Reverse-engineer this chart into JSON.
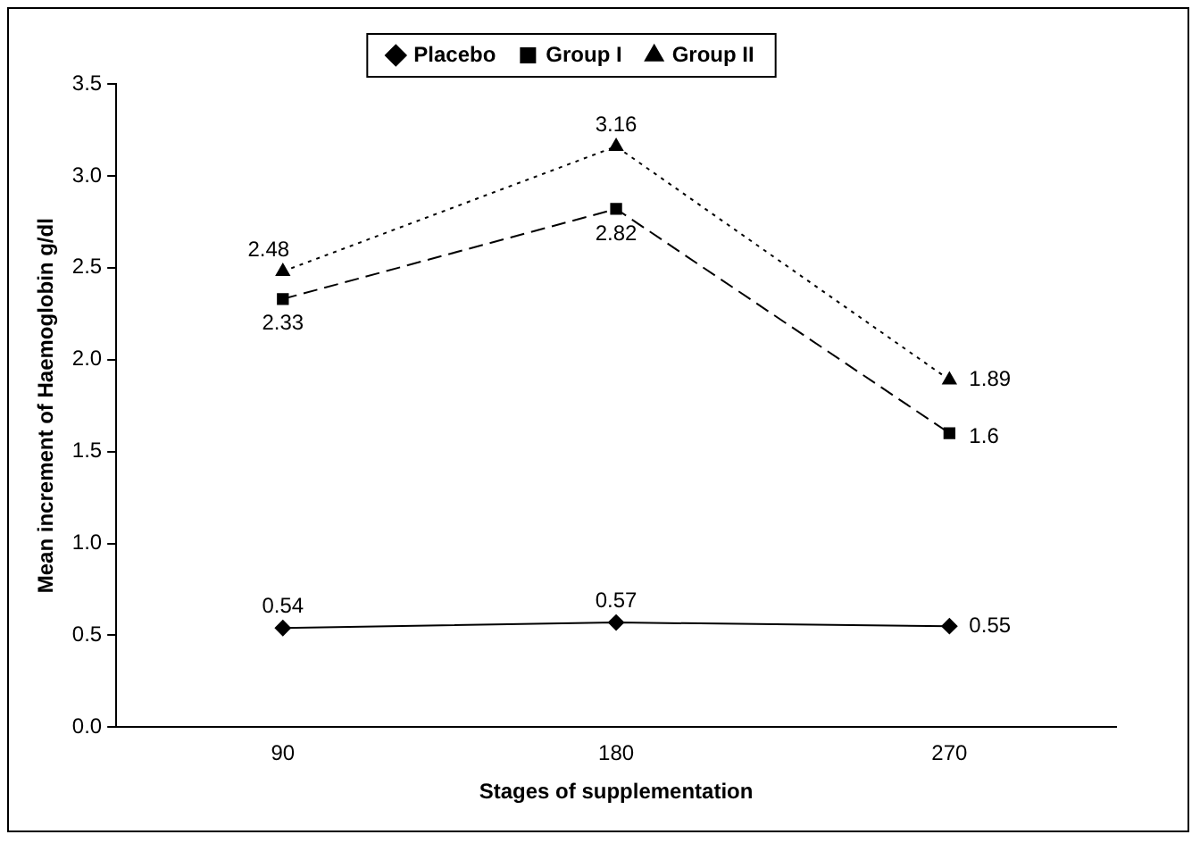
{
  "chart_data": {
    "type": "line",
    "xlabel": "Stages of supplementation",
    "ylabel": "Mean increment of Haemoglobin g/dl",
    "categories": [
      "90",
      "180",
      "270"
    ],
    "series": [
      {
        "name": "Placebo",
        "color": "#000000",
        "values": [
          0.54,
          0.57,
          0.55
        ],
        "marker": "diamond",
        "line_style": "solid"
      },
      {
        "name": "Group I",
        "color": "#000000",
        "values": [
          2.33,
          2.82,
          1.6
        ],
        "marker": "square",
        "line_style": "dashed"
      },
      {
        "name": "Group II",
        "color": "#000000",
        "values": [
          2.48,
          3.16,
          1.89
        ],
        "marker": "triangle",
        "line_style": "dotted"
      }
    ],
    "ylim": [
      0,
      3.5
    ],
    "yticks": [
      {
        "value": 0,
        "label": "0.0"
      },
      0.5,
      {
        "value": 1,
        "label": "1.0"
      },
      1.5,
      {
        "value": 2,
        "label": "2.0"
      },
      2.5,
      {
        "value": 3,
        "label": "3.0"
      },
      3.5
    ],
    "grid": false,
    "legend": "top",
    "data_labels": true
  }
}
